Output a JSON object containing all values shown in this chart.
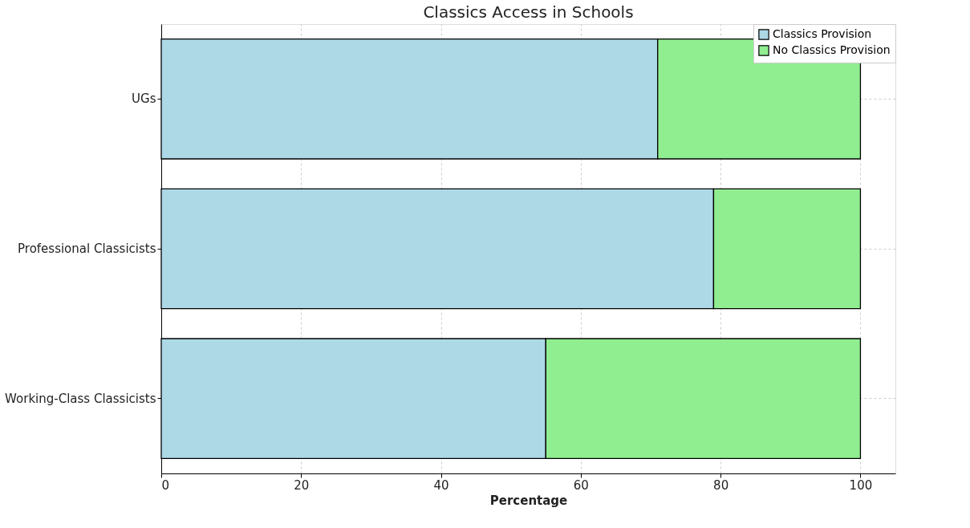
{
  "chart_data": {
    "type": "bar",
    "orientation": "horizontal",
    "stacked": true,
    "title": "Classics Access in Schools",
    "xlabel": "Percentage",
    "categories": [
      "UGs",
      "Professional Classicists",
      "Working-Class Classicists"
    ],
    "series": [
      {
        "name": "Classics Provision",
        "color": "#add8e6",
        "values": [
          71,
          79,
          55
        ]
      },
      {
        "name": "No Classics Provision",
        "color": "#90ee90",
        "values": [
          29,
          21,
          45
        ]
      }
    ],
    "xlim": [
      0,
      105
    ],
    "xticks": [
      0,
      20,
      40,
      60,
      80,
      100
    ],
    "grid": true,
    "legend": "top right"
  }
}
